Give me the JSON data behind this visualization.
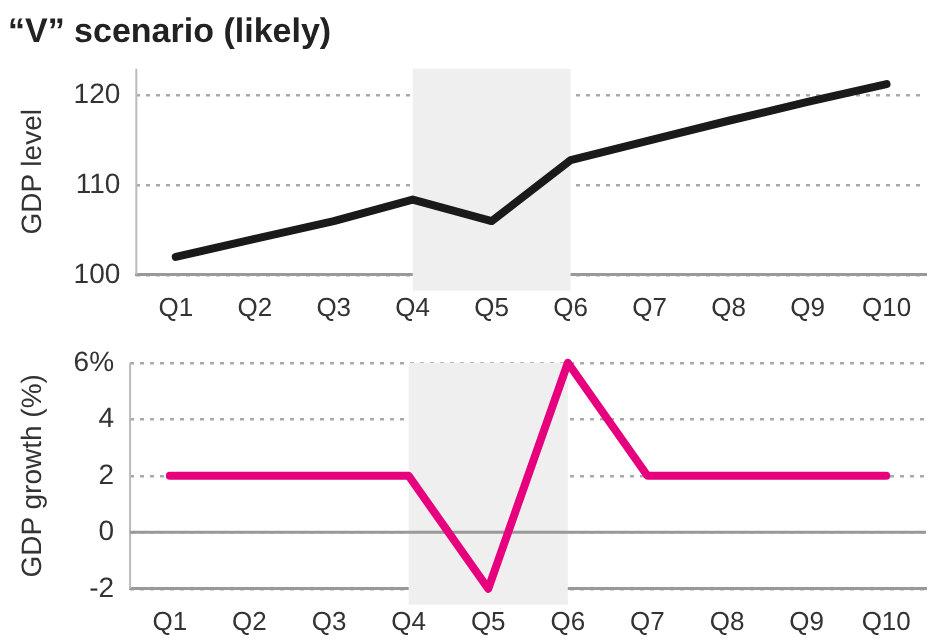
{
  "chart_data": [
    {
      "type": "line",
      "title": "“V” scenario (likely)",
      "ylabel": "GDP level",
      "categories": [
        "Q1",
        "Q2",
        "Q3",
        "Q4",
        "Q5",
        "Q6",
        "Q7",
        "Q8",
        "Q9",
        "Q10"
      ],
      "series": [
        {
          "color": "#1a1a1a",
          "values": [
            102,
            104,
            106,
            108.4,
            106,
            112.8,
            115,
            117.2,
            119.3,
            121.3
          ]
        }
      ],
      "ylim": [
        100,
        123
      ],
      "yticks": [
        100,
        110,
        120
      ],
      "grid": "y",
      "bands": [
        {
          "axis": "x",
          "from": "Q4",
          "to": "Q6",
          "color": "#efefef"
        }
      ]
    },
    {
      "type": "line",
      "ylabel": "GDP growth (%)",
      "categories": [
        "Q1",
        "Q2",
        "Q3",
        "Q4",
        "Q5",
        "Q6",
        "Q7",
        "Q8",
        "Q9",
        "Q10"
      ],
      "series": [
        {
          "color": "#e6007e",
          "values": [
            2,
            2,
            2,
            2,
            -2,
            6,
            2,
            2,
            2,
            2
          ]
        }
      ],
      "ylim": [
        -2,
        6
      ],
      "yticks": [
        -2,
        0,
        2,
        4,
        {
          "value": 6,
          "label": "6%"
        }
      ],
      "grid": "y",
      "bands": [
        {
          "axis": "x",
          "from": "Q4",
          "to": "Q6",
          "color": "#efefef"
        }
      ],
      "ref_lines": [
        {
          "axis": "y",
          "value": 0,
          "color": "#999999"
        }
      ]
    }
  ]
}
